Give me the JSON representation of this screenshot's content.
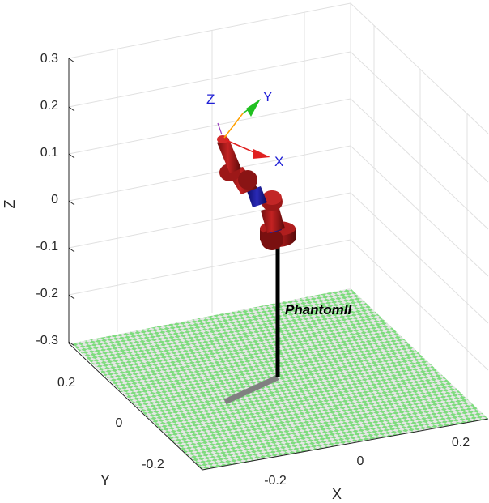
{
  "figure": {
    "axes": {
      "xlabel": "X",
      "ylabel": "Y",
      "zlabel": "Z",
      "xticks": [
        "-0.2",
        "0",
        "0.2"
      ],
      "yticks": [
        "-0.2",
        "0",
        "0.2"
      ],
      "zticks": [
        "0.3",
        "0.2",
        "0.1",
        "0",
        "-0.1",
        "-0.2",
        "-0.3"
      ],
      "grid": true
    },
    "robot": {
      "name": "PhantomII",
      "link_color": "#a81a1a",
      "joint_axis_color": "#1a1a9c",
      "base_color": "#000000"
    },
    "tool_frame": {
      "x_label": "X",
      "y_label": "Y",
      "z_label": "Z",
      "x_color": "#e02020",
      "y_color": "#20c020",
      "z_color": "#ffa000"
    },
    "floor": {
      "color_a": "#7ddc7d",
      "color_b": "#e6e6e6"
    },
    "shadow_color": "#808080"
  }
}
